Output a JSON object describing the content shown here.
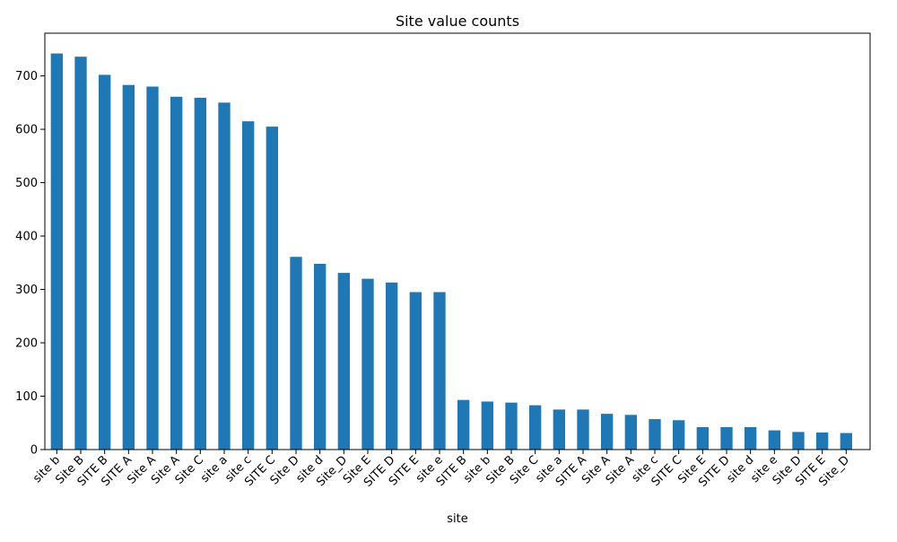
{
  "chart_data": {
    "type": "bar",
    "title": "Site value counts",
    "xlabel": "site",
    "ylabel": "",
    "ylim": [
      0,
      780
    ],
    "yticks": [
      0,
      100,
      200,
      300,
      400,
      500,
      600,
      700
    ],
    "grid": false,
    "legend": "none",
    "bar_color": "#1f77b4",
    "categories": [
      "site b",
      "Site B",
      "SITE B",
      "SITE A",
      "Site  A",
      "Site A",
      "Site C",
      "site a",
      "site c",
      "SITE C",
      "Site D",
      "site d",
      "Site_D",
      "Site E",
      "SITE D",
      "SITE E",
      "site e",
      "SITE B ",
      "site b ",
      "Site B ",
      "Site C ",
      "site a ",
      "SITE A ",
      "Site  A ",
      "Site A ",
      "site c ",
      "SITE C ",
      "Site E ",
      "SITE D ",
      "site d ",
      "site e ",
      "Site D ",
      "SITE E ",
      "Site_D "
    ],
    "values": [
      742,
      736,
      702,
      683,
      680,
      661,
      659,
      650,
      615,
      605,
      361,
      348,
      331,
      320,
      313,
      295,
      295,
      93,
      90,
      88,
      83,
      75,
      75,
      67,
      65,
      57,
      55,
      42,
      42,
      42,
      36,
      33,
      32,
      31
    ]
  }
}
